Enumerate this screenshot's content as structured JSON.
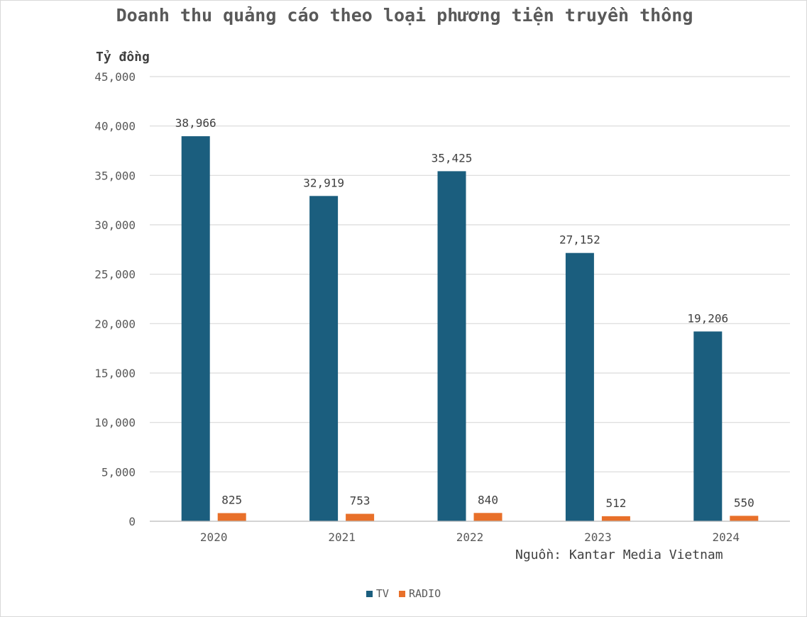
{
  "chart_data": {
    "type": "bar",
    "title": "Doanh thu quảng cáo theo loại phương tiện truyền thông",
    "ylabel": "Tỷ đồng",
    "xlabel": "",
    "source_note": "Nguồn: Kantar Media Vietnam",
    "categories": [
      "2020",
      "2021",
      "2022",
      "2023",
      "2024"
    ],
    "series": [
      {
        "name": "TV",
        "color": "#1b5e7e",
        "values": [
          38966,
          32919,
          35425,
          27152,
          19206
        ],
        "labels": [
          "38,966",
          "32,919",
          "35,425",
          "27,152",
          "19,206"
        ]
      },
      {
        "name": "RADIO",
        "color": "#e8702a",
        "values": [
          825,
          753,
          840,
          512,
          550
        ],
        "labels": [
          "825",
          "753",
          "840",
          "512",
          "550"
        ]
      }
    ],
    "ylim": [
      0,
      45000
    ],
    "yticks": [
      0,
      5000,
      10000,
      15000,
      20000,
      25000,
      30000,
      35000,
      40000,
      45000
    ],
    "ytick_labels": [
      "0",
      "5,000",
      "10,000",
      "15,000",
      "20,000",
      "25,000",
      "30,000",
      "35,000",
      "40,000",
      "45,000"
    ],
    "grid": true,
    "legend_position": "bottom"
  }
}
